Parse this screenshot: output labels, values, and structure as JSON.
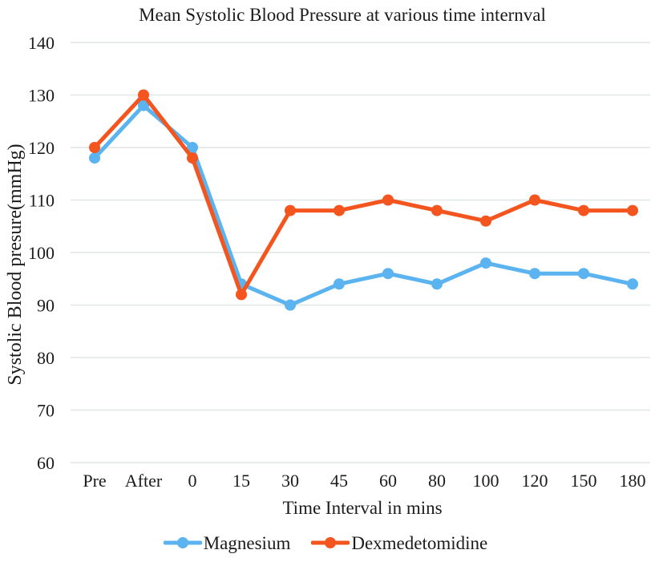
{
  "chart_data": {
    "type": "line",
    "title": "Mean Systolic Blood Pressure at various time internval",
    "xlabel": "Time Interval in mins",
    "ylabel": "Systolic Blood presure(mmHg)",
    "categories": [
      "Pre",
      "After",
      "0",
      "15",
      "30",
      "45",
      "60",
      "80",
      "100",
      "120",
      "150",
      "180"
    ],
    "y_ticks": [
      140,
      130,
      120,
      110,
      100,
      90,
      80,
      70,
      60
    ],
    "ylim": [
      60,
      140
    ],
    "grid": "horizontal-only",
    "legend_position": "bottom-center",
    "series": [
      {
        "name": "Magnesium",
        "color": "#5BB3EF",
        "values": [
          118,
          128,
          120,
          94,
          90,
          94,
          96,
          94,
          98,
          96,
          96,
          94
        ]
      },
      {
        "name": "Dexmedetomidine",
        "color": "#F4541E",
        "values": [
          120,
          130,
          118,
          92,
          108,
          108,
          110,
          108,
          106,
          110,
          108,
          108
        ]
      }
    ]
  },
  "colors": {
    "gridline": "#DFE6E3",
    "text": "#1B1B1B",
    "background": "#FFFFFF"
  }
}
